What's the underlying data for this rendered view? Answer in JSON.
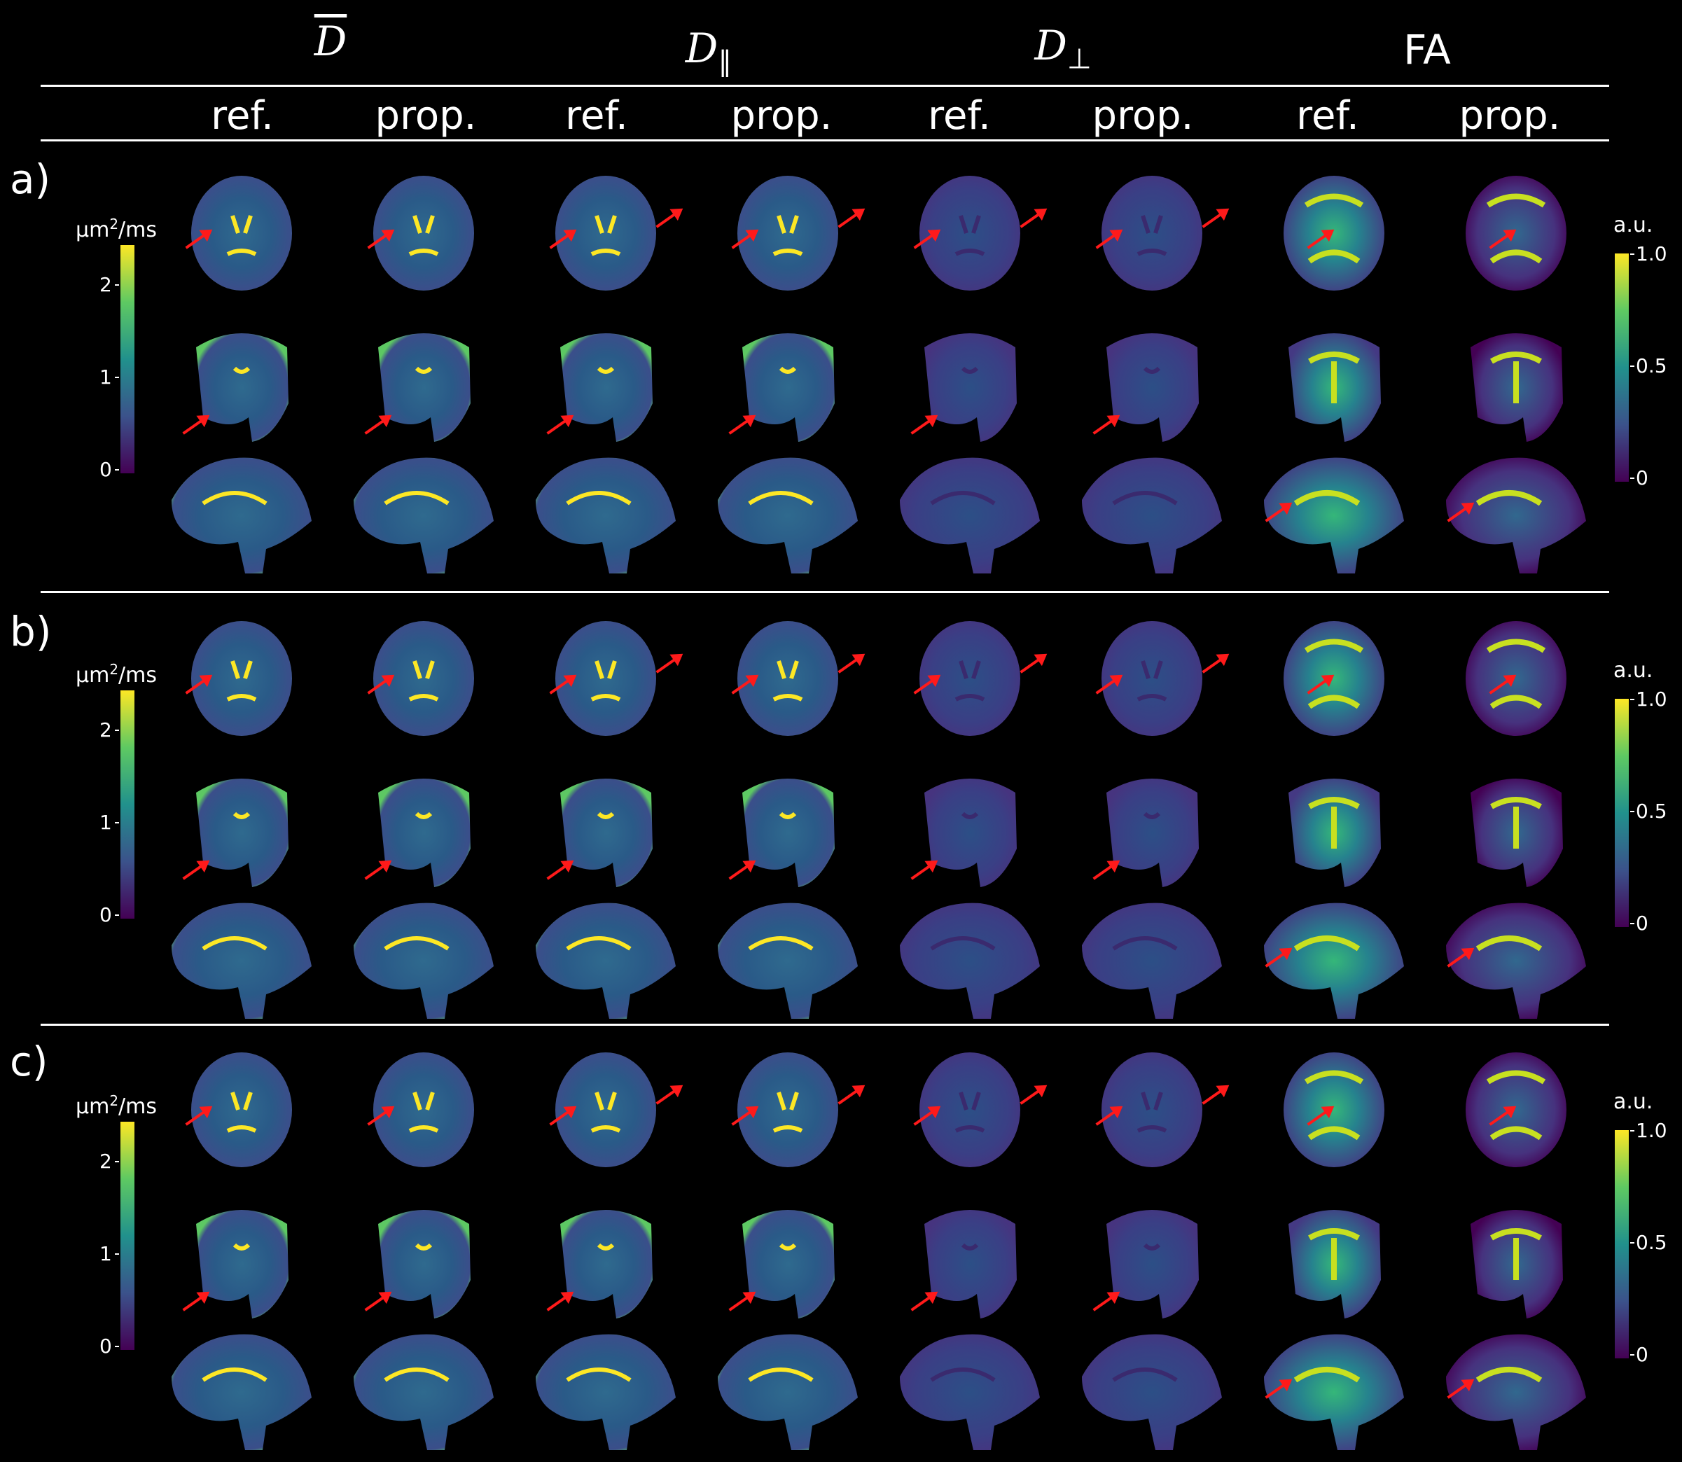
{
  "headers": {
    "mean_d": "D",
    "d_par": "D",
    "d_par_sub": "∥",
    "d_perp": "D",
    "d_perp_sub": "⊥",
    "fa": "FA"
  },
  "subheaders": [
    "ref.",
    "prop.",
    "ref.",
    "prop.",
    "ref.",
    "prop.",
    "ref.",
    "prop."
  ],
  "panels": [
    {
      "label": "a)"
    },
    {
      "label": "b)"
    },
    {
      "label": "c)"
    }
  ],
  "diffusivity_colorbar": {
    "unit_main": "μm",
    "unit_sup": "2",
    "unit_tail": "/ms",
    "ticks": [
      "2",
      "1",
      "0"
    ]
  },
  "fa_colorbar": {
    "unit": "a.u.",
    "ticks": [
      "1.0",
      "0.5",
      "0"
    ]
  },
  "colors": {
    "background": "#000000",
    "arrow": "#ff1a1a",
    "colormap": "viridis"
  }
}
